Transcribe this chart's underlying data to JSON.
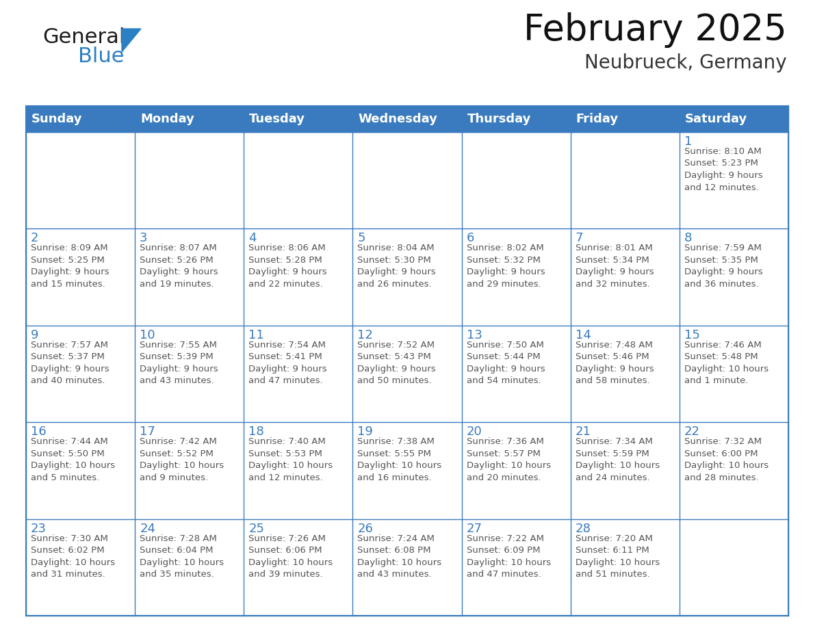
{
  "title": "February 2025",
  "subtitle": "Neubrueck, Germany",
  "header_color": "#3a7bbf",
  "header_text_color": "#ffffff",
  "cell_bg_color": "#ffffff",
  "cell_border_color": "#3a7bbf",
  "day_num_color": "#3a7bbf",
  "info_text_color": "#555555",
  "days_of_week": [
    "Sunday",
    "Monday",
    "Tuesday",
    "Wednesday",
    "Thursday",
    "Friday",
    "Saturday"
  ],
  "weeks": [
    [
      {
        "day": "",
        "info": ""
      },
      {
        "day": "",
        "info": ""
      },
      {
        "day": "",
        "info": ""
      },
      {
        "day": "",
        "info": ""
      },
      {
        "day": "",
        "info": ""
      },
      {
        "day": "",
        "info": ""
      },
      {
        "day": "1",
        "info": "Sunrise: 8:10 AM\nSunset: 5:23 PM\nDaylight: 9 hours\nand 12 minutes."
      }
    ],
    [
      {
        "day": "2",
        "info": "Sunrise: 8:09 AM\nSunset: 5:25 PM\nDaylight: 9 hours\nand 15 minutes."
      },
      {
        "day": "3",
        "info": "Sunrise: 8:07 AM\nSunset: 5:26 PM\nDaylight: 9 hours\nand 19 minutes."
      },
      {
        "day": "4",
        "info": "Sunrise: 8:06 AM\nSunset: 5:28 PM\nDaylight: 9 hours\nand 22 minutes."
      },
      {
        "day": "5",
        "info": "Sunrise: 8:04 AM\nSunset: 5:30 PM\nDaylight: 9 hours\nand 26 minutes."
      },
      {
        "day": "6",
        "info": "Sunrise: 8:02 AM\nSunset: 5:32 PM\nDaylight: 9 hours\nand 29 minutes."
      },
      {
        "day": "7",
        "info": "Sunrise: 8:01 AM\nSunset: 5:34 PM\nDaylight: 9 hours\nand 32 minutes."
      },
      {
        "day": "8",
        "info": "Sunrise: 7:59 AM\nSunset: 5:35 PM\nDaylight: 9 hours\nand 36 minutes."
      }
    ],
    [
      {
        "day": "9",
        "info": "Sunrise: 7:57 AM\nSunset: 5:37 PM\nDaylight: 9 hours\nand 40 minutes."
      },
      {
        "day": "10",
        "info": "Sunrise: 7:55 AM\nSunset: 5:39 PM\nDaylight: 9 hours\nand 43 minutes."
      },
      {
        "day": "11",
        "info": "Sunrise: 7:54 AM\nSunset: 5:41 PM\nDaylight: 9 hours\nand 47 minutes."
      },
      {
        "day": "12",
        "info": "Sunrise: 7:52 AM\nSunset: 5:43 PM\nDaylight: 9 hours\nand 50 minutes."
      },
      {
        "day": "13",
        "info": "Sunrise: 7:50 AM\nSunset: 5:44 PM\nDaylight: 9 hours\nand 54 minutes."
      },
      {
        "day": "14",
        "info": "Sunrise: 7:48 AM\nSunset: 5:46 PM\nDaylight: 9 hours\nand 58 minutes."
      },
      {
        "day": "15",
        "info": "Sunrise: 7:46 AM\nSunset: 5:48 PM\nDaylight: 10 hours\nand 1 minute."
      }
    ],
    [
      {
        "day": "16",
        "info": "Sunrise: 7:44 AM\nSunset: 5:50 PM\nDaylight: 10 hours\nand 5 minutes."
      },
      {
        "day": "17",
        "info": "Sunrise: 7:42 AM\nSunset: 5:52 PM\nDaylight: 10 hours\nand 9 minutes."
      },
      {
        "day": "18",
        "info": "Sunrise: 7:40 AM\nSunset: 5:53 PM\nDaylight: 10 hours\nand 12 minutes."
      },
      {
        "day": "19",
        "info": "Sunrise: 7:38 AM\nSunset: 5:55 PM\nDaylight: 10 hours\nand 16 minutes."
      },
      {
        "day": "20",
        "info": "Sunrise: 7:36 AM\nSunset: 5:57 PM\nDaylight: 10 hours\nand 20 minutes."
      },
      {
        "day": "21",
        "info": "Sunrise: 7:34 AM\nSunset: 5:59 PM\nDaylight: 10 hours\nand 24 minutes."
      },
      {
        "day": "22",
        "info": "Sunrise: 7:32 AM\nSunset: 6:00 PM\nDaylight: 10 hours\nand 28 minutes."
      }
    ],
    [
      {
        "day": "23",
        "info": "Sunrise: 7:30 AM\nSunset: 6:02 PM\nDaylight: 10 hours\nand 31 minutes."
      },
      {
        "day": "24",
        "info": "Sunrise: 7:28 AM\nSunset: 6:04 PM\nDaylight: 10 hours\nand 35 minutes."
      },
      {
        "day": "25",
        "info": "Sunrise: 7:26 AM\nSunset: 6:06 PM\nDaylight: 10 hours\nand 39 minutes."
      },
      {
        "day": "26",
        "info": "Sunrise: 7:24 AM\nSunset: 6:08 PM\nDaylight: 10 hours\nand 43 minutes."
      },
      {
        "day": "27",
        "info": "Sunrise: 7:22 AM\nSunset: 6:09 PM\nDaylight: 10 hours\nand 47 minutes."
      },
      {
        "day": "28",
        "info": "Sunrise: 7:20 AM\nSunset: 6:11 PM\nDaylight: 10 hours\nand 51 minutes."
      },
      {
        "day": "",
        "info": ""
      }
    ]
  ],
  "logo_general_color": "#1a1a1a",
  "logo_blue_color": "#2b7fc3",
  "title_fontsize": 38,
  "subtitle_fontsize": 20,
  "header_fontsize": 13,
  "day_num_fontsize": 13,
  "info_fontsize": 9.5
}
